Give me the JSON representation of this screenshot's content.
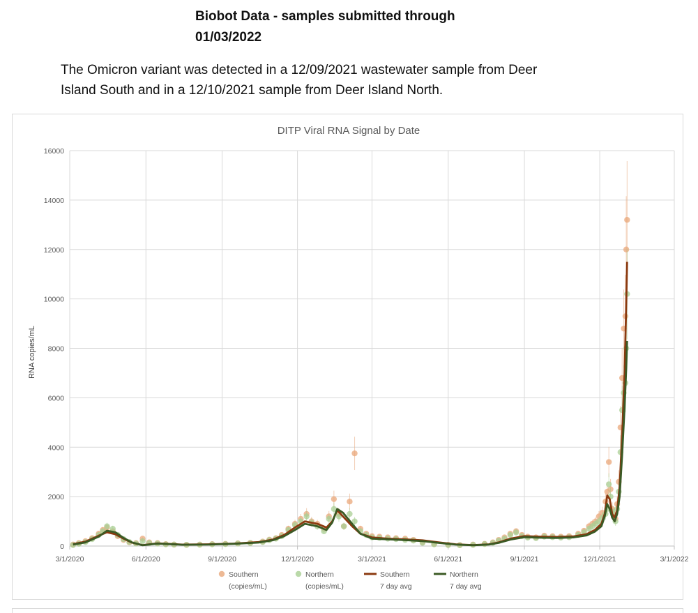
{
  "heading": {
    "line1": "Biobot Data - samples submitted through",
    "line2": "01/03/2022"
  },
  "note": {
    "line1": "The Omicron variant was detected in a 12/09/2021 wastewater sample from Deer",
    "line2": "Island South and in a 12/10/2021 sample from Deer Island North."
  },
  "colors": {
    "southern_points": "#e9a77a",
    "northern_points": "#a9cf94",
    "southern_avg": "#8b3a10",
    "northern_avg": "#3b5a25",
    "grid": "#d9d9d9",
    "axis_text": "#595959"
  },
  "chart_data": {
    "type": "scatter",
    "title": "DITP Viral RNA Signal by Date",
    "xlabel": "",
    "ylabel": "RNA copies/mL",
    "ylim": [
      0,
      16000
    ],
    "yticks": [
      0,
      2000,
      4000,
      6000,
      8000,
      10000,
      12000,
      14000,
      16000
    ],
    "xlim": [
      "2020-03-01",
      "2022-03-01"
    ],
    "xticks": [
      "2020-03-01",
      "2020-06-01",
      "2020-09-01",
      "2020-12-01",
      "2021-03-01",
      "2021-06-01",
      "2021-09-01",
      "2021-12-01",
      "2022-03-01"
    ],
    "xtick_labels": [
      "3/1/2020",
      "6/1/2020",
      "9/1/2020",
      "12/1/2020",
      "3/1/2021",
      "6/1/2021",
      "9/1/2021",
      "12/1/2021",
      "3/1/2022"
    ],
    "grid": true,
    "legend_position": "bottom",
    "legend": [
      {
        "label1": "Southern",
        "label2": "(copies/mL)",
        "kind": "marker",
        "color": "#e9a77a"
      },
      {
        "label1": "Northern",
        "label2": "(copies/mL)",
        "kind": "marker",
        "color": "#a9cf94"
      },
      {
        "label1": "Southern",
        "label2": "7 day avg",
        "kind": "line",
        "color": "#8b3a10"
      },
      {
        "label1": "Northern",
        "label2": "7 day avg",
        "kind": "line",
        "color": "#3b5a25"
      }
    ],
    "series": [
      {
        "name": "Southern (copies/mL)",
        "kind": "points",
        "x": [
          "2020-03-05",
          "2020-03-12",
          "2020-03-20",
          "2020-03-28",
          "2020-04-05",
          "2020-04-10",
          "2020-04-15",
          "2020-04-22",
          "2020-04-28",
          "2020-05-05",
          "2020-05-12",
          "2020-05-20",
          "2020-05-28",
          "2020-06-05",
          "2020-06-15",
          "2020-06-25",
          "2020-07-05",
          "2020-07-20",
          "2020-08-05",
          "2020-08-20",
          "2020-09-05",
          "2020-09-20",
          "2020-10-05",
          "2020-10-20",
          "2020-10-28",
          "2020-11-05",
          "2020-11-12",
          "2020-11-20",
          "2020-11-28",
          "2020-12-05",
          "2020-12-12",
          "2020-12-18",
          "2020-12-25",
          "2021-01-02",
          "2021-01-08",
          "2021-01-14",
          "2021-01-20",
          "2021-01-26",
          "2021-02-02",
          "2021-02-08",
          "2021-02-15",
          "2021-02-22",
          "2021-03-01",
          "2021-03-10",
          "2021-03-20",
          "2021-03-30",
          "2021-04-10",
          "2021-04-20",
          "2021-05-01",
          "2021-05-15",
          "2021-06-01",
          "2021-06-15",
          "2021-07-01",
          "2021-07-15",
          "2021-07-25",
          "2021-08-01",
          "2021-08-08",
          "2021-08-15",
          "2021-08-22",
          "2021-08-29",
          "2021-09-05",
          "2021-09-15",
          "2021-09-25",
          "2021-10-05",
          "2021-10-15",
          "2021-10-25",
          "2021-11-05",
          "2021-11-12",
          "2021-11-18",
          "2021-11-22",
          "2021-11-26",
          "2021-11-30",
          "2021-12-04",
          "2021-12-08",
          "2021-12-10",
          "2021-12-12",
          "2021-12-14",
          "2021-12-16",
          "2021-12-18",
          "2021-12-20",
          "2021-12-22",
          "2021-12-24",
          "2021-12-26",
          "2021-12-28",
          "2021-12-30",
          "2022-01-01",
          "2022-01-02",
          "2022-01-03"
        ],
        "y": [
          60,
          120,
          200,
          320,
          500,
          650,
          750,
          600,
          400,
          250,
          150,
          120,
          300,
          150,
          120,
          80,
          60,
          50,
          60,
          80,
          90,
          110,
          130,
          180,
          260,
          320,
          450,
          700,
          900,
          1100,
          1300,
          1000,
          900,
          700,
          1200,
          1900,
          1300,
          800,
          1800,
          3750,
          700,
          500,
          400,
          380,
          350,
          320,
          300,
          250,
          150,
          80,
          50,
          40,
          60,
          90,
          150,
          250,
          350,
          500,
          600,
          450,
          380,
          350,
          420,
          400,
          380,
          400,
          500,
          620,
          800,
          900,
          1000,
          1200,
          1350,
          1800,
          2200,
          3400,
          2300,
          1500,
          1300,
          1100,
          1700,
          2600,
          4800,
          6800,
          8800,
          9300,
          12000,
          13200
        ]
      },
      {
        "name": "Northern (copies/mL)",
        "kind": "points",
        "x": [
          "2020-03-05",
          "2020-03-12",
          "2020-03-20",
          "2020-03-28",
          "2020-04-05",
          "2020-04-10",
          "2020-04-15",
          "2020-04-22",
          "2020-04-28",
          "2020-05-05",
          "2020-05-12",
          "2020-05-20",
          "2020-05-28",
          "2020-06-05",
          "2020-06-15",
          "2020-06-25",
          "2020-07-05",
          "2020-07-20",
          "2020-08-05",
          "2020-08-20",
          "2020-09-05",
          "2020-09-20",
          "2020-10-05",
          "2020-10-20",
          "2020-10-28",
          "2020-11-05",
          "2020-11-12",
          "2020-11-20",
          "2020-11-28",
          "2020-12-05",
          "2020-12-12",
          "2020-12-18",
          "2020-12-25",
          "2021-01-02",
          "2021-01-08",
          "2021-01-14",
          "2021-01-20",
          "2021-01-26",
          "2021-02-02",
          "2021-02-08",
          "2021-02-15",
          "2021-02-22",
          "2021-03-01",
          "2021-03-10",
          "2021-03-20",
          "2021-03-30",
          "2021-04-10",
          "2021-04-20",
          "2021-05-01",
          "2021-05-15",
          "2021-06-01",
          "2021-06-15",
          "2021-07-01",
          "2021-07-15",
          "2021-07-25",
          "2021-08-01",
          "2021-08-08",
          "2021-08-15",
          "2021-08-22",
          "2021-08-29",
          "2021-09-05",
          "2021-09-15",
          "2021-09-25",
          "2021-10-05",
          "2021-10-15",
          "2021-10-25",
          "2021-11-05",
          "2021-11-12",
          "2021-11-18",
          "2021-11-22",
          "2021-11-26",
          "2021-11-30",
          "2021-12-04",
          "2021-12-08",
          "2021-12-10",
          "2021-12-12",
          "2021-12-14",
          "2021-12-16",
          "2021-12-18",
          "2021-12-20",
          "2021-12-22",
          "2021-12-24",
          "2021-12-26",
          "2021-12-28",
          "2021-12-30",
          "2022-01-01",
          "2022-01-02",
          "2022-01-03"
        ],
        "y": [
          40,
          90,
          160,
          280,
          450,
          600,
          800,
          700,
          450,
          280,
          160,
          100,
          200,
          120,
          100,
          70,
          60,
          50,
          55,
          70,
          80,
          100,
          120,
          160,
          240,
          300,
          400,
          650,
          850,
          1000,
          1200,
          950,
          800,
          600,
          1100,
          1500,
          1200,
          800,
          1300,
          1000,
          600,
          450,
          350,
          330,
          300,
          280,
          250,
          220,
          130,
          70,
          40,
          35,
          50,
          80,
          130,
          220,
          300,
          450,
          550,
          400,
          340,
          320,
          380,
          360,
          340,
          360,
          450,
          560,
          700,
          800,
          900,
          1000,
          1150,
          1300,
          1500,
          2500,
          2000,
          1400,
          1200,
          1000,
          1500,
          2200,
          3800,
          5500,
          6200,
          6600,
          8000,
          10200
        ]
      },
      {
        "name": "Southern 7 day avg",
        "kind": "line",
        "x": [
          "2020-03-05",
          "2020-03-20",
          "2020-04-05",
          "2020-04-15",
          "2020-04-25",
          "2020-05-05",
          "2020-05-15",
          "2020-05-28",
          "2020-06-15",
          "2020-07-15",
          "2020-08-15",
          "2020-09-15",
          "2020-10-15",
          "2020-11-01",
          "2020-11-15",
          "2020-11-28",
          "2020-12-10",
          "2020-12-25",
          "2021-01-05",
          "2021-01-12",
          "2021-01-18",
          "2021-01-25",
          "2021-02-05",
          "2021-02-15",
          "2021-03-01",
          "2021-03-20",
          "2021-04-10",
          "2021-05-01",
          "2021-05-20",
          "2021-06-10",
          "2021-07-01",
          "2021-07-20",
          "2021-08-01",
          "2021-08-15",
          "2021-09-01",
          "2021-09-20",
          "2021-10-10",
          "2021-10-30",
          "2021-11-15",
          "2021-11-25",
          "2021-12-03",
          "2021-12-07",
          "2021-12-10",
          "2021-12-13",
          "2021-12-16",
          "2021-12-19",
          "2021-12-22",
          "2021-12-25",
          "2021-12-28",
          "2021-12-31",
          "2022-01-02",
          "2022-01-03"
        ],
        "y": [
          80,
          180,
          420,
          560,
          480,
          300,
          140,
          40,
          110,
          60,
          70,
          100,
          160,
          260,
          450,
          750,
          1000,
          900,
          750,
          1000,
          1450,
          1200,
          800,
          500,
          350,
          300,
          270,
          230,
          150,
          70,
          40,
          70,
          150,
          300,
          400,
          380,
          370,
          390,
          480,
          650,
          900,
          1300,
          2050,
          1900,
          1300,
          1150,
          1450,
          2400,
          4500,
          7000,
          9800,
          11500
        ]
      },
      {
        "name": "Northern 7 day avg",
        "kind": "line",
        "x": [
          "2020-03-05",
          "2020-03-20",
          "2020-04-05",
          "2020-04-15",
          "2020-04-25",
          "2020-05-05",
          "2020-05-15",
          "2020-05-28",
          "2020-06-15",
          "2020-07-15",
          "2020-08-15",
          "2020-09-15",
          "2020-10-15",
          "2020-11-01",
          "2020-11-15",
          "2020-11-28",
          "2020-12-10",
          "2020-12-25",
          "2021-01-05",
          "2021-01-12",
          "2021-01-18",
          "2021-01-25",
          "2021-02-05",
          "2021-02-15",
          "2021-03-01",
          "2021-03-20",
          "2021-04-10",
          "2021-05-01",
          "2021-05-20",
          "2021-06-10",
          "2021-07-01",
          "2021-07-20",
          "2021-08-01",
          "2021-08-15",
          "2021-09-01",
          "2021-09-20",
          "2021-10-10",
          "2021-10-30",
          "2021-11-15",
          "2021-11-25",
          "2021-12-03",
          "2021-12-07",
          "2021-12-10",
          "2021-12-13",
          "2021-12-16",
          "2021-12-19",
          "2021-12-22",
          "2021-12-25",
          "2021-12-28",
          "2021-12-31",
          "2022-01-02",
          "2022-01-03"
        ],
        "y": [
          60,
          150,
          380,
          620,
          560,
          330,
          150,
          30,
          100,
          55,
          60,
          90,
          140,
          230,
          400,
          650,
          900,
          800,
          650,
          950,
          1500,
          1350,
          900,
          500,
          300,
          270,
          240,
          200,
          130,
          60,
          35,
          60,
          130,
          260,
          360,
          340,
          330,
          350,
          430,
          580,
          800,
          1200,
          1700,
          1500,
          1150,
          1000,
          1300,
          2000,
          3700,
          5600,
          7200,
          8300
        ]
      }
    ]
  }
}
